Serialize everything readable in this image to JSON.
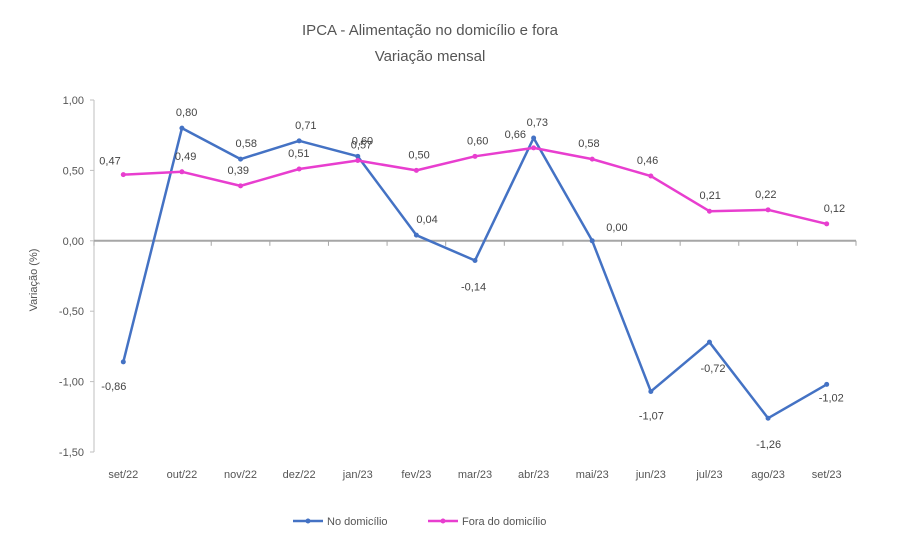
{
  "chart_data": {
    "type": "line",
    "title": "IPCA - Alimentação no domicílio e fora",
    "subtitle": "Variação mensal",
    "ylabel": "Variação (%)",
    "xlabel": "",
    "ylim": [
      -1.5,
      1.0
    ],
    "yticks": [
      1.0,
      0.5,
      0.0,
      -0.5,
      -1.0,
      -1.5
    ],
    "ytick_labels": [
      "1,00",
      "0,50",
      "0,00",
      "-0,50",
      "-1,00",
      "-1,50"
    ],
    "categories": [
      "set/22",
      "out/22",
      "nov/22",
      "dez/22",
      "jan/23",
      "fev/23",
      "mar/23",
      "abr/23",
      "mai/23",
      "jun/23",
      "jul/23",
      "ago/23",
      "set/23"
    ],
    "grid": false,
    "legend_position": "bottom",
    "series": [
      {
        "name": "No domicílio",
        "color": "#4472C4",
        "values": [
          -0.86,
          0.8,
          0.58,
          0.71,
          0.6,
          0.04,
          -0.14,
          0.73,
          0.0,
          -1.07,
          -0.72,
          -1.26,
          -1.02
        ],
        "labels": [
          "-0,86",
          "0,80",
          "0,58",
          "0,71",
          "0,60",
          "0,04",
          "-0,14",
          "0,73",
          "0,00",
          "-1,07",
          "-0,72",
          "-1,26",
          "-1,02"
        ]
      },
      {
        "name": "Fora do domicílio",
        "color": "#E83ECF",
        "values": [
          0.47,
          0.49,
          0.39,
          0.51,
          0.57,
          0.5,
          0.6,
          0.66,
          0.58,
          0.46,
          0.21,
          0.22,
          0.12
        ],
        "labels": [
          "0,47",
          "0,49",
          "0,39",
          "0,51",
          "0,57",
          "0,50",
          "0,60",
          "0,66",
          "0,58",
          "0,46",
          "0,21",
          "0,22",
          "0,12"
        ]
      }
    ]
  }
}
